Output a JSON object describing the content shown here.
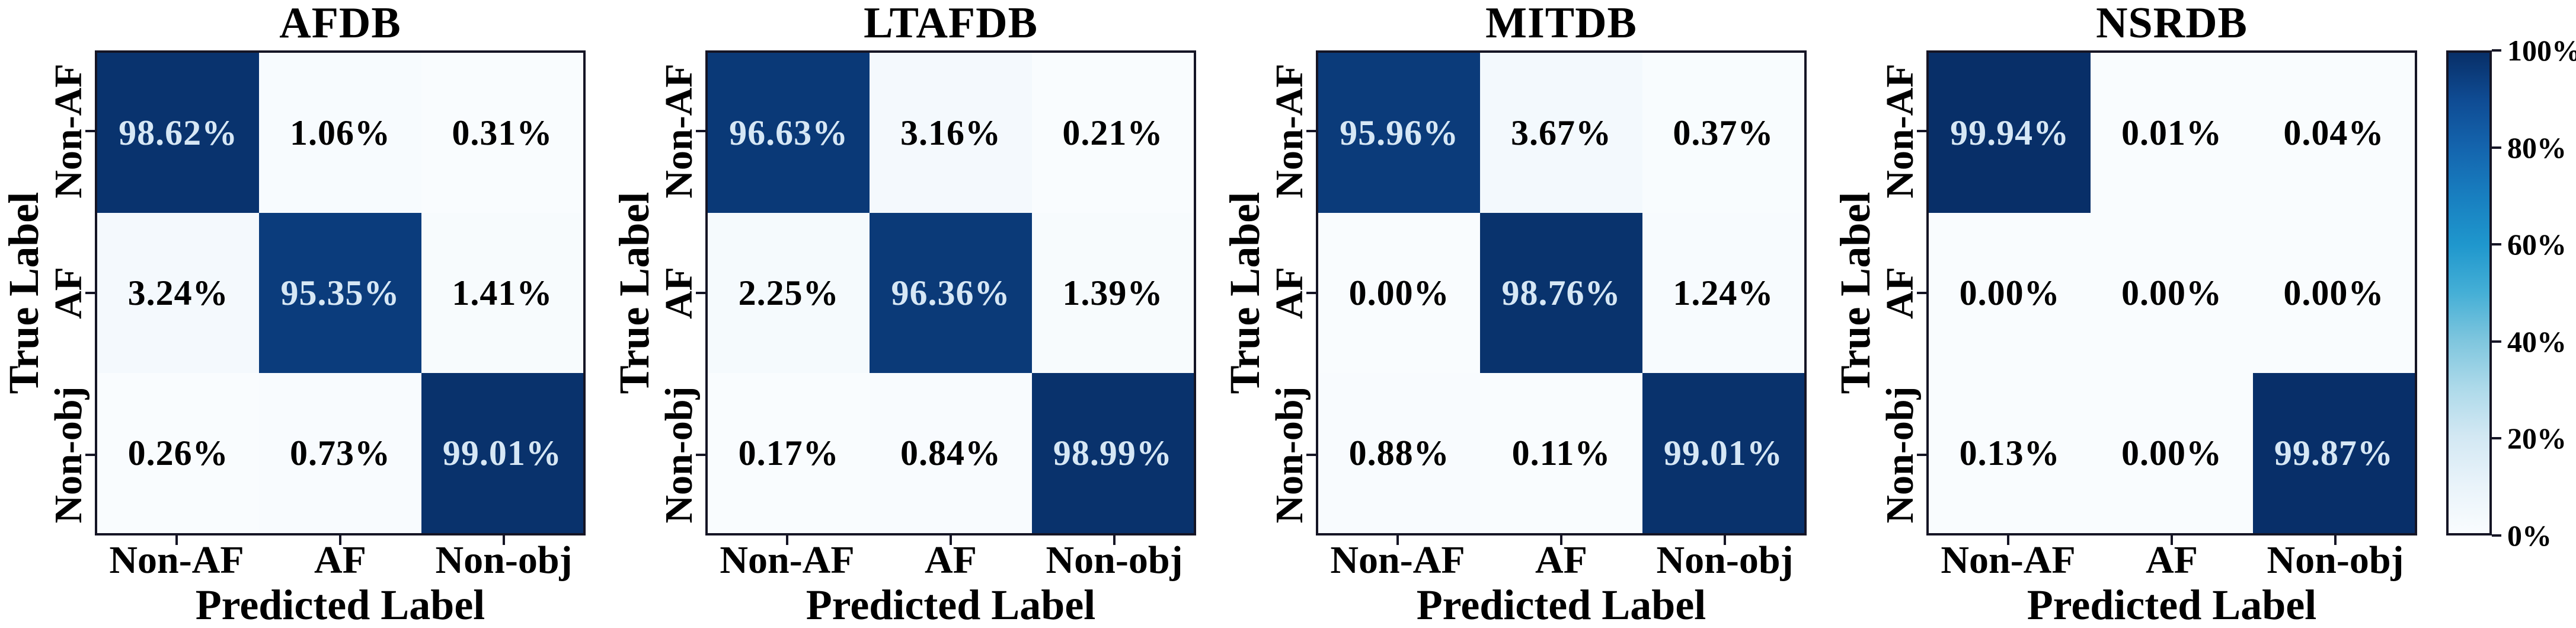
{
  "chart_data": {
    "type": "heatmap",
    "description": "Row-normalized confusion matrices for four ECG databases",
    "xlabel": "Predicted Label",
    "ylabel": "True Label",
    "categories": [
      "Non-AF",
      "AF",
      "Non-obj"
    ],
    "unit": "%",
    "value_range": [
      0,
      100
    ],
    "panels": [
      {
        "title": "AFDB",
        "values": [
          [
            98.62,
            1.06,
            0.31
          ],
          [
            3.24,
            95.35,
            1.41
          ],
          [
            0.26,
            0.73,
            99.01
          ]
        ]
      },
      {
        "title": "LTAFDB",
        "values": [
          [
            96.63,
            3.16,
            0.21
          ],
          [
            2.25,
            96.36,
            1.39
          ],
          [
            0.17,
            0.84,
            98.99
          ]
        ]
      },
      {
        "title": "MITDB",
        "values": [
          [
            95.96,
            3.67,
            0.37
          ],
          [
            0.0,
            98.76,
            1.24
          ],
          [
            0.88,
            0.11,
            99.01
          ]
        ]
      },
      {
        "title": "NSRDB",
        "values": [
          [
            99.94,
            0.01,
            0.04
          ],
          [
            0.0,
            0.0,
            0.0
          ],
          [
            0.13,
            0.0,
            99.87
          ]
        ]
      }
    ],
    "colorbar": {
      "ticks": [
        "100%",
        "80%",
        "60%",
        "40%",
        "20%",
        "0%"
      ],
      "max": "100%",
      "min": "0%",
      "position": "right"
    },
    "style": {
      "background": "#ffffff",
      "axis_color": "#151525",
      "text_color": "#000000",
      "cell_text_light": "#d6e7f5",
      "colormap": [
        {
          "t": 0.0,
          "color": "#f9fcfe"
        },
        {
          "t": 0.1,
          "color": "#e9f3fa"
        },
        {
          "t": 0.2,
          "color": "#d3e8f3"
        },
        {
          "t": 0.3,
          "color": "#aedaea"
        },
        {
          "t": 0.4,
          "color": "#7fc6de"
        },
        {
          "t": 0.5,
          "color": "#45afd6"
        },
        {
          "t": 0.6,
          "color": "#1f97cd"
        },
        {
          "t": 0.7,
          "color": "#187fc0"
        },
        {
          "t": 0.8,
          "color": "#1465ae"
        },
        {
          "t": 0.9,
          "color": "#0f4c94"
        },
        {
          "t": 1.0,
          "color": "#082f68"
        }
      ]
    }
  }
}
